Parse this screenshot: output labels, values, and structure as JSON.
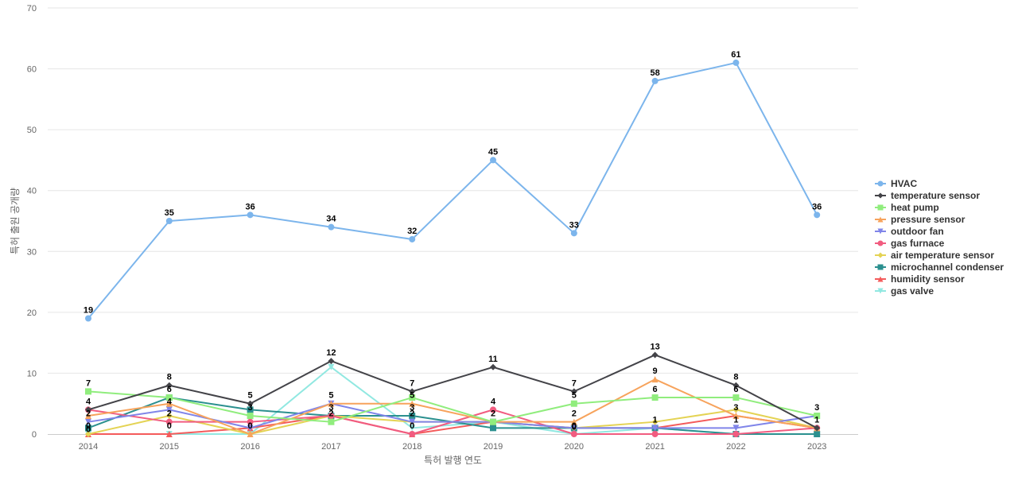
{
  "chart_data": {
    "type": "line",
    "title": "",
    "xlabel": "특허 발행 연도",
    "ylabel": "특허 출원 공개량",
    "x": [
      "2014",
      "2015",
      "2016",
      "2017",
      "2018",
      "2019",
      "2020",
      "2021",
      "2022",
      "2023"
    ],
    "ylim": [
      0,
      70
    ],
    "yticks": [
      0,
      10,
      20,
      30,
      40,
      50,
      60,
      70
    ],
    "grid": true,
    "legend": "right",
    "series": [
      {
        "name": "HVAC",
        "values": [
          19,
          35,
          36,
          34,
          32,
          45,
          33,
          58,
          61,
          36
        ],
        "color": "#7cb5ec",
        "marker": "circle"
      },
      {
        "name": "temperature sensor",
        "values": [
          4,
          8,
          5,
          12,
          7,
          11,
          7,
          13,
          8,
          1
        ],
        "color": "#434348",
        "marker": "diamond"
      },
      {
        "name": "heat pump",
        "values": [
          7,
          6,
          3,
          2,
          6,
          2,
          5,
          6,
          6,
          3
        ],
        "color": "#90ed7d",
        "marker": "square"
      },
      {
        "name": "pressure sensor",
        "values": [
          3,
          5,
          0,
          5,
          5,
          2,
          2,
          9,
          3,
          1
        ],
        "color": "#f7a35c",
        "marker": "triangle"
      },
      {
        "name": "outdoor fan",
        "values": [
          2,
          4,
          1,
          5,
          2,
          2,
          1,
          1,
          1,
          3
        ],
        "color": "#8085e9",
        "marker": "triangle-down"
      },
      {
        "name": "gas furnace",
        "values": [
          4,
          2,
          2,
          3,
          0,
          4,
          0,
          0,
          0,
          1
        ],
        "color": "#f15c80",
        "marker": "circle"
      },
      {
        "name": "air temperature sensor",
        "values": [
          0,
          3,
          0,
          3,
          2,
          2,
          1,
          2,
          4,
          1
        ],
        "color": "#e4d354",
        "marker": "diamond"
      },
      {
        "name": "microchannel condenser",
        "values": [
          1,
          6,
          4,
          3,
          3,
          1,
          1,
          1,
          0,
          0
        ],
        "color": "#2b908f",
        "marker": "square"
      },
      {
        "name": "humidity sensor",
        "values": [
          0,
          0,
          1,
          3,
          0,
          2,
          1,
          1,
          3,
          1
        ],
        "color": "#f45b5b",
        "marker": "triangle"
      },
      {
        "name": "gas valve",
        "values": [
          0,
          0,
          0,
          11,
          1,
          2,
          0,
          1,
          0,
          0
        ],
        "color": "#91e8e1",
        "marker": "triangle-down"
      }
    ],
    "data_labels": [
      {
        "x": "2014",
        "text": "19",
        "value": 19
      },
      {
        "x": "2015",
        "text": "35",
        "value": 35
      },
      {
        "x": "2016",
        "text": "36",
        "value": 36
      },
      {
        "x": "2017",
        "text": "34",
        "value": 34
      },
      {
        "x": "2018",
        "text": "32",
        "value": 32
      },
      {
        "x": "2019",
        "text": "45",
        "value": 45
      },
      {
        "x": "2020",
        "text": "33",
        "value": 33
      },
      {
        "x": "2021",
        "text": "58",
        "value": 58
      },
      {
        "x": "2022",
        "text": "61",
        "value": 61
      },
      {
        "x": "2023",
        "text": "36",
        "value": 36
      },
      {
        "x": "2014",
        "text": "7",
        "value": 7
      },
      {
        "x": "2014",
        "text": "4",
        "value": 4
      },
      {
        "x": "2014",
        "text": "2",
        "value": 2
      },
      {
        "x": "2014",
        "text": "0",
        "value": 0
      },
      {
        "x": "2014",
        "text": "0",
        "value": -0.6
      },
      {
        "x": "2015",
        "text": "8",
        "value": 8
      },
      {
        "x": "2015",
        "text": "6",
        "value": 6
      },
      {
        "x": "2015",
        "text": "4",
        "value": 4
      },
      {
        "x": "2015",
        "text": "2",
        "value": 2
      },
      {
        "x": "2015",
        "text": "0",
        "value": 0
      },
      {
        "x": "2016",
        "text": "5",
        "value": 5
      },
      {
        "x": "2016",
        "text": "3",
        "value": 3
      },
      {
        "x": "2016",
        "text": "0",
        "value": 0
      },
      {
        "x": "2017",
        "text": "12",
        "value": 12
      },
      {
        "x": "2017",
        "text": "5",
        "value": 5
      },
      {
        "x": "2017",
        "text": "2",
        "value": 2
      },
      {
        "x": "2017",
        "text": "3",
        "value": 3
      },
      {
        "x": "2018",
        "text": "7",
        "value": 7
      },
      {
        "x": "2018",
        "text": "5",
        "value": 5
      },
      {
        "x": "2018",
        "text": "2",
        "value": 2
      },
      {
        "x": "2018",
        "text": "3",
        "value": 3
      },
      {
        "x": "2018",
        "text": "0",
        "value": 0
      },
      {
        "x": "2019",
        "text": "11",
        "value": 11
      },
      {
        "x": "2019",
        "text": "4",
        "value": 4
      },
      {
        "x": "2019",
        "text": "2",
        "value": 2
      },
      {
        "x": "2020",
        "text": "7",
        "value": 7
      },
      {
        "x": "2020",
        "text": "5",
        "value": 5
      },
      {
        "x": "2020",
        "text": "2",
        "value": 2
      },
      {
        "x": "2020",
        "text": "0",
        "value": 0
      },
      {
        "x": "2020",
        "text": "0",
        "value": -0.2
      },
      {
        "x": "2021",
        "text": "13",
        "value": 13
      },
      {
        "x": "2021",
        "text": "9",
        "value": 9
      },
      {
        "x": "2021",
        "text": "6",
        "value": 6
      },
      {
        "x": "2021",
        "text": "1",
        "value": 1
      },
      {
        "x": "2022",
        "text": "8",
        "value": 8
      },
      {
        "x": "2022",
        "text": "6",
        "value": 6
      },
      {
        "x": "2022",
        "text": "3",
        "value": 3
      },
      {
        "x": "2022",
        "text": "1",
        "value": 1
      },
      {
        "x": "2023",
        "text": "3",
        "value": 3
      },
      {
        "x": "2023",
        "text": "1",
        "value": 1
      }
    ]
  }
}
